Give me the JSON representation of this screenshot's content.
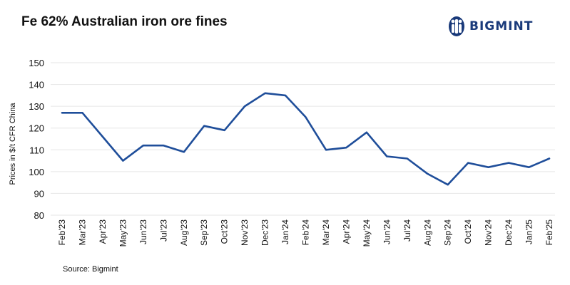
{
  "title": "Fe 62% Australian iron ore fines",
  "brand": {
    "name": "BIGMINT",
    "color": "#1a3a7a",
    "icon": "bigmint-logo-icon"
  },
  "source": "Source: Bigmint",
  "colors": {
    "line": "#1f4e9a",
    "grid": "#e6e6e6",
    "axis": "#333333"
  },
  "chart_data": {
    "type": "line",
    "title": "Fe 62% Australian iron ore fines",
    "ylabel": "Prices in $/t CFR China",
    "xlabel": "",
    "ylim": [
      80,
      150
    ],
    "yticks": [
      80,
      90,
      100,
      110,
      120,
      130,
      140,
      150
    ],
    "grid": "horizontal",
    "categories": [
      "Feb'23",
      "Mar'23",
      "Apr'23",
      "May'23",
      "Jun'23",
      "Jul'23",
      "Aug'23",
      "Sep'23",
      "Oct'23",
      "Nov'23",
      "Dec'23",
      "Jan'24",
      "Feb'24",
      "Mar'24",
      "Apr'24",
      "May'24",
      "Jun'24",
      "Jul'24",
      "Aug'24",
      "Sep'24",
      "Oct'24",
      "Nov'24",
      "Dec'24",
      "Jan'25",
      "Feb'25"
    ],
    "series": [
      {
        "values": [
          127,
          127,
          116,
          105,
          112,
          112,
          109,
          121,
          119,
          130,
          136,
          135,
          125,
          110,
          111,
          118,
          107,
          106,
          99,
          94,
          104,
          102,
          104,
          102,
          106
        ]
      }
    ]
  }
}
